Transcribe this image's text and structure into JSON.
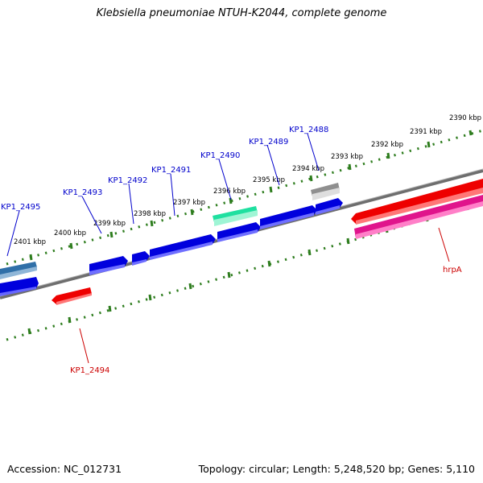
{
  "title": "Klebsiella pneumoniae NTUH-K2044, complete genome",
  "footer": {
    "accession": "Accession: NC_012731",
    "summary": "Topology: circular; Length: 5,248,520 bp; Genes: 5,110"
  },
  "ruler_ticks": [
    {
      "label": "2390 kbp"
    },
    {
      "label": "2391 kbp"
    },
    {
      "label": "2392 kbp"
    },
    {
      "label": "2393 kbp"
    },
    {
      "label": "2394 kbp"
    },
    {
      "label": "2395 kbp"
    },
    {
      "label": "2396 kbp"
    },
    {
      "label": "2397 kbp"
    },
    {
      "label": "2398 kbp"
    },
    {
      "label": "2399 kbp"
    },
    {
      "label": "2400 kbp"
    },
    {
      "label": "2401 kbp"
    }
  ],
  "gene_labels": [
    {
      "name": "KP1_2488",
      "color": "#0000cc"
    },
    {
      "name": "KP1_2489",
      "color": "#0000cc"
    },
    {
      "name": "KP1_2490",
      "color": "#0000cc"
    },
    {
      "name": "KP1_2491",
      "color": "#0000cc"
    },
    {
      "name": "KP1_2492",
      "color": "#0000cc"
    },
    {
      "name": "KP1_2493",
      "color": "#0000cc"
    },
    {
      "name": "KP1_2495",
      "color": "#0000cc"
    },
    {
      "name": "KP1_2494",
      "color": "#cc0000"
    },
    {
      "name": "hrpA",
      "color": "#cc0000"
    }
  ],
  "colors": {
    "backbone": "#808080",
    "forward_cds": "#0000ee",
    "reverse_cds": "#ee0000",
    "tick": "#2e7d1e",
    "pink_feature": "#e0148c",
    "teal_feature": "#20e0a0",
    "steel_feature": "#4682b4",
    "gray_feature": "#bdbdbd"
  }
}
